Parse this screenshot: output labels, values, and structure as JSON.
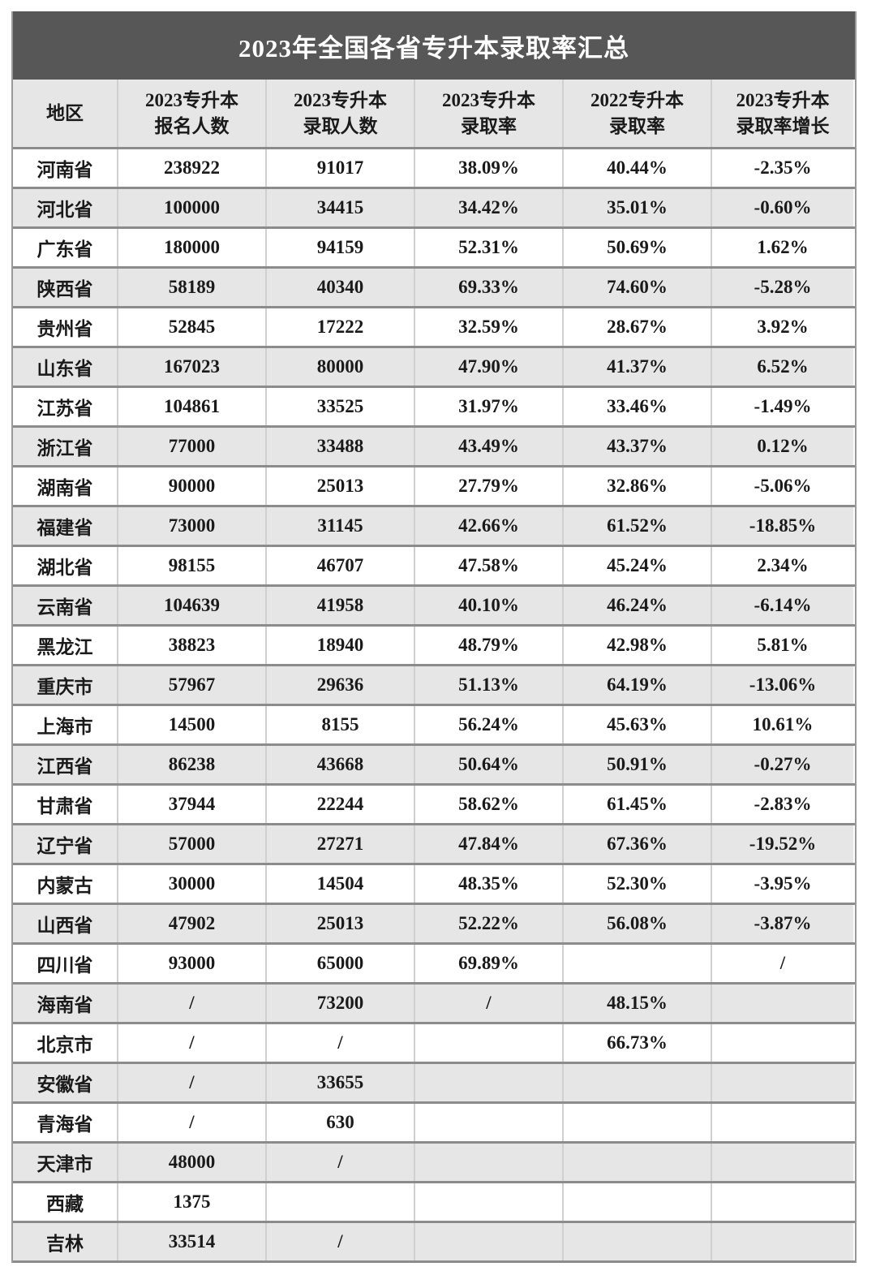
{
  "title": "2023年全国各省专升本录取率汇总",
  "headers": [
    [
      "地区"
    ],
    [
      "2023专升本",
      "报名人数"
    ],
    [
      "2023专升本",
      "录取人数"
    ],
    [
      "2023专升本",
      "录取率"
    ],
    [
      "2022专升本",
      "录取率"
    ],
    [
      "2023专升本",
      "录取率增长"
    ]
  ],
  "rows": [
    [
      "河南省",
      "238922",
      "91017",
      "38.09%",
      "40.44%",
      "-2.35%"
    ],
    [
      "河北省",
      "100000",
      "34415",
      "34.42%",
      "35.01%",
      "-0.60%"
    ],
    [
      "广东省",
      "180000",
      "94159",
      "52.31%",
      "50.69%",
      "1.62%"
    ],
    [
      "陕西省",
      "58189",
      "40340",
      "69.33%",
      "74.60%",
      "-5.28%"
    ],
    [
      "贵州省",
      "52845",
      "17222",
      "32.59%",
      "28.67%",
      "3.92%"
    ],
    [
      "山东省",
      "167023",
      "80000",
      "47.90%",
      "41.37%",
      "6.52%"
    ],
    [
      "江苏省",
      "104861",
      "33525",
      "31.97%",
      "33.46%",
      "-1.49%"
    ],
    [
      "浙江省",
      "77000",
      "33488",
      "43.49%",
      "43.37%",
      "0.12%"
    ],
    [
      "湖南省",
      "90000",
      "25013",
      "27.79%",
      "32.86%",
      "-5.06%"
    ],
    [
      "福建省",
      "73000",
      "31145",
      "42.66%",
      "61.52%",
      "-18.85%"
    ],
    [
      "湖北省",
      "98155",
      "46707",
      "47.58%",
      "45.24%",
      "2.34%"
    ],
    [
      "云南省",
      "104639",
      "41958",
      "40.10%",
      "46.24%",
      "-6.14%"
    ],
    [
      "黑龙江",
      "38823",
      "18940",
      "48.79%",
      "42.98%",
      "5.81%"
    ],
    [
      "重庆市",
      "57967",
      "29636",
      "51.13%",
      "64.19%",
      "-13.06%"
    ],
    [
      "上海市",
      "14500",
      "8155",
      "56.24%",
      "45.63%",
      "10.61%"
    ],
    [
      "江西省",
      "86238",
      "43668",
      "50.64%",
      "50.91%",
      "-0.27%"
    ],
    [
      "甘肃省",
      "37944",
      "22244",
      "58.62%",
      "61.45%",
      "-2.83%"
    ],
    [
      "辽宁省",
      "57000",
      "27271",
      "47.84%",
      "67.36%",
      "-19.52%"
    ],
    [
      "内蒙古",
      "30000",
      "14504",
      "48.35%",
      "52.30%",
      "-3.95%"
    ],
    [
      "山西省",
      "47902",
      "25013",
      "52.22%",
      "56.08%",
      "-3.87%"
    ],
    [
      "四川省",
      "93000",
      "65000",
      "69.89%",
      "",
      "/"
    ],
    [
      "海南省",
      "/",
      "73200",
      "/",
      "48.15%",
      ""
    ],
    [
      "北京市",
      "/",
      "/",
      "",
      "66.73%",
      ""
    ],
    [
      "安徽省",
      "/",
      "33655",
      "",
      "",
      ""
    ],
    [
      "青海省",
      "/",
      "630",
      "",
      "",
      ""
    ],
    [
      "天津市",
      "48000",
      "/",
      "",
      "",
      ""
    ],
    [
      "西藏",
      "1375",
      "",
      "",
      "",
      ""
    ],
    [
      "吉林",
      "33514",
      "/",
      "",
      "",
      ""
    ]
  ]
}
